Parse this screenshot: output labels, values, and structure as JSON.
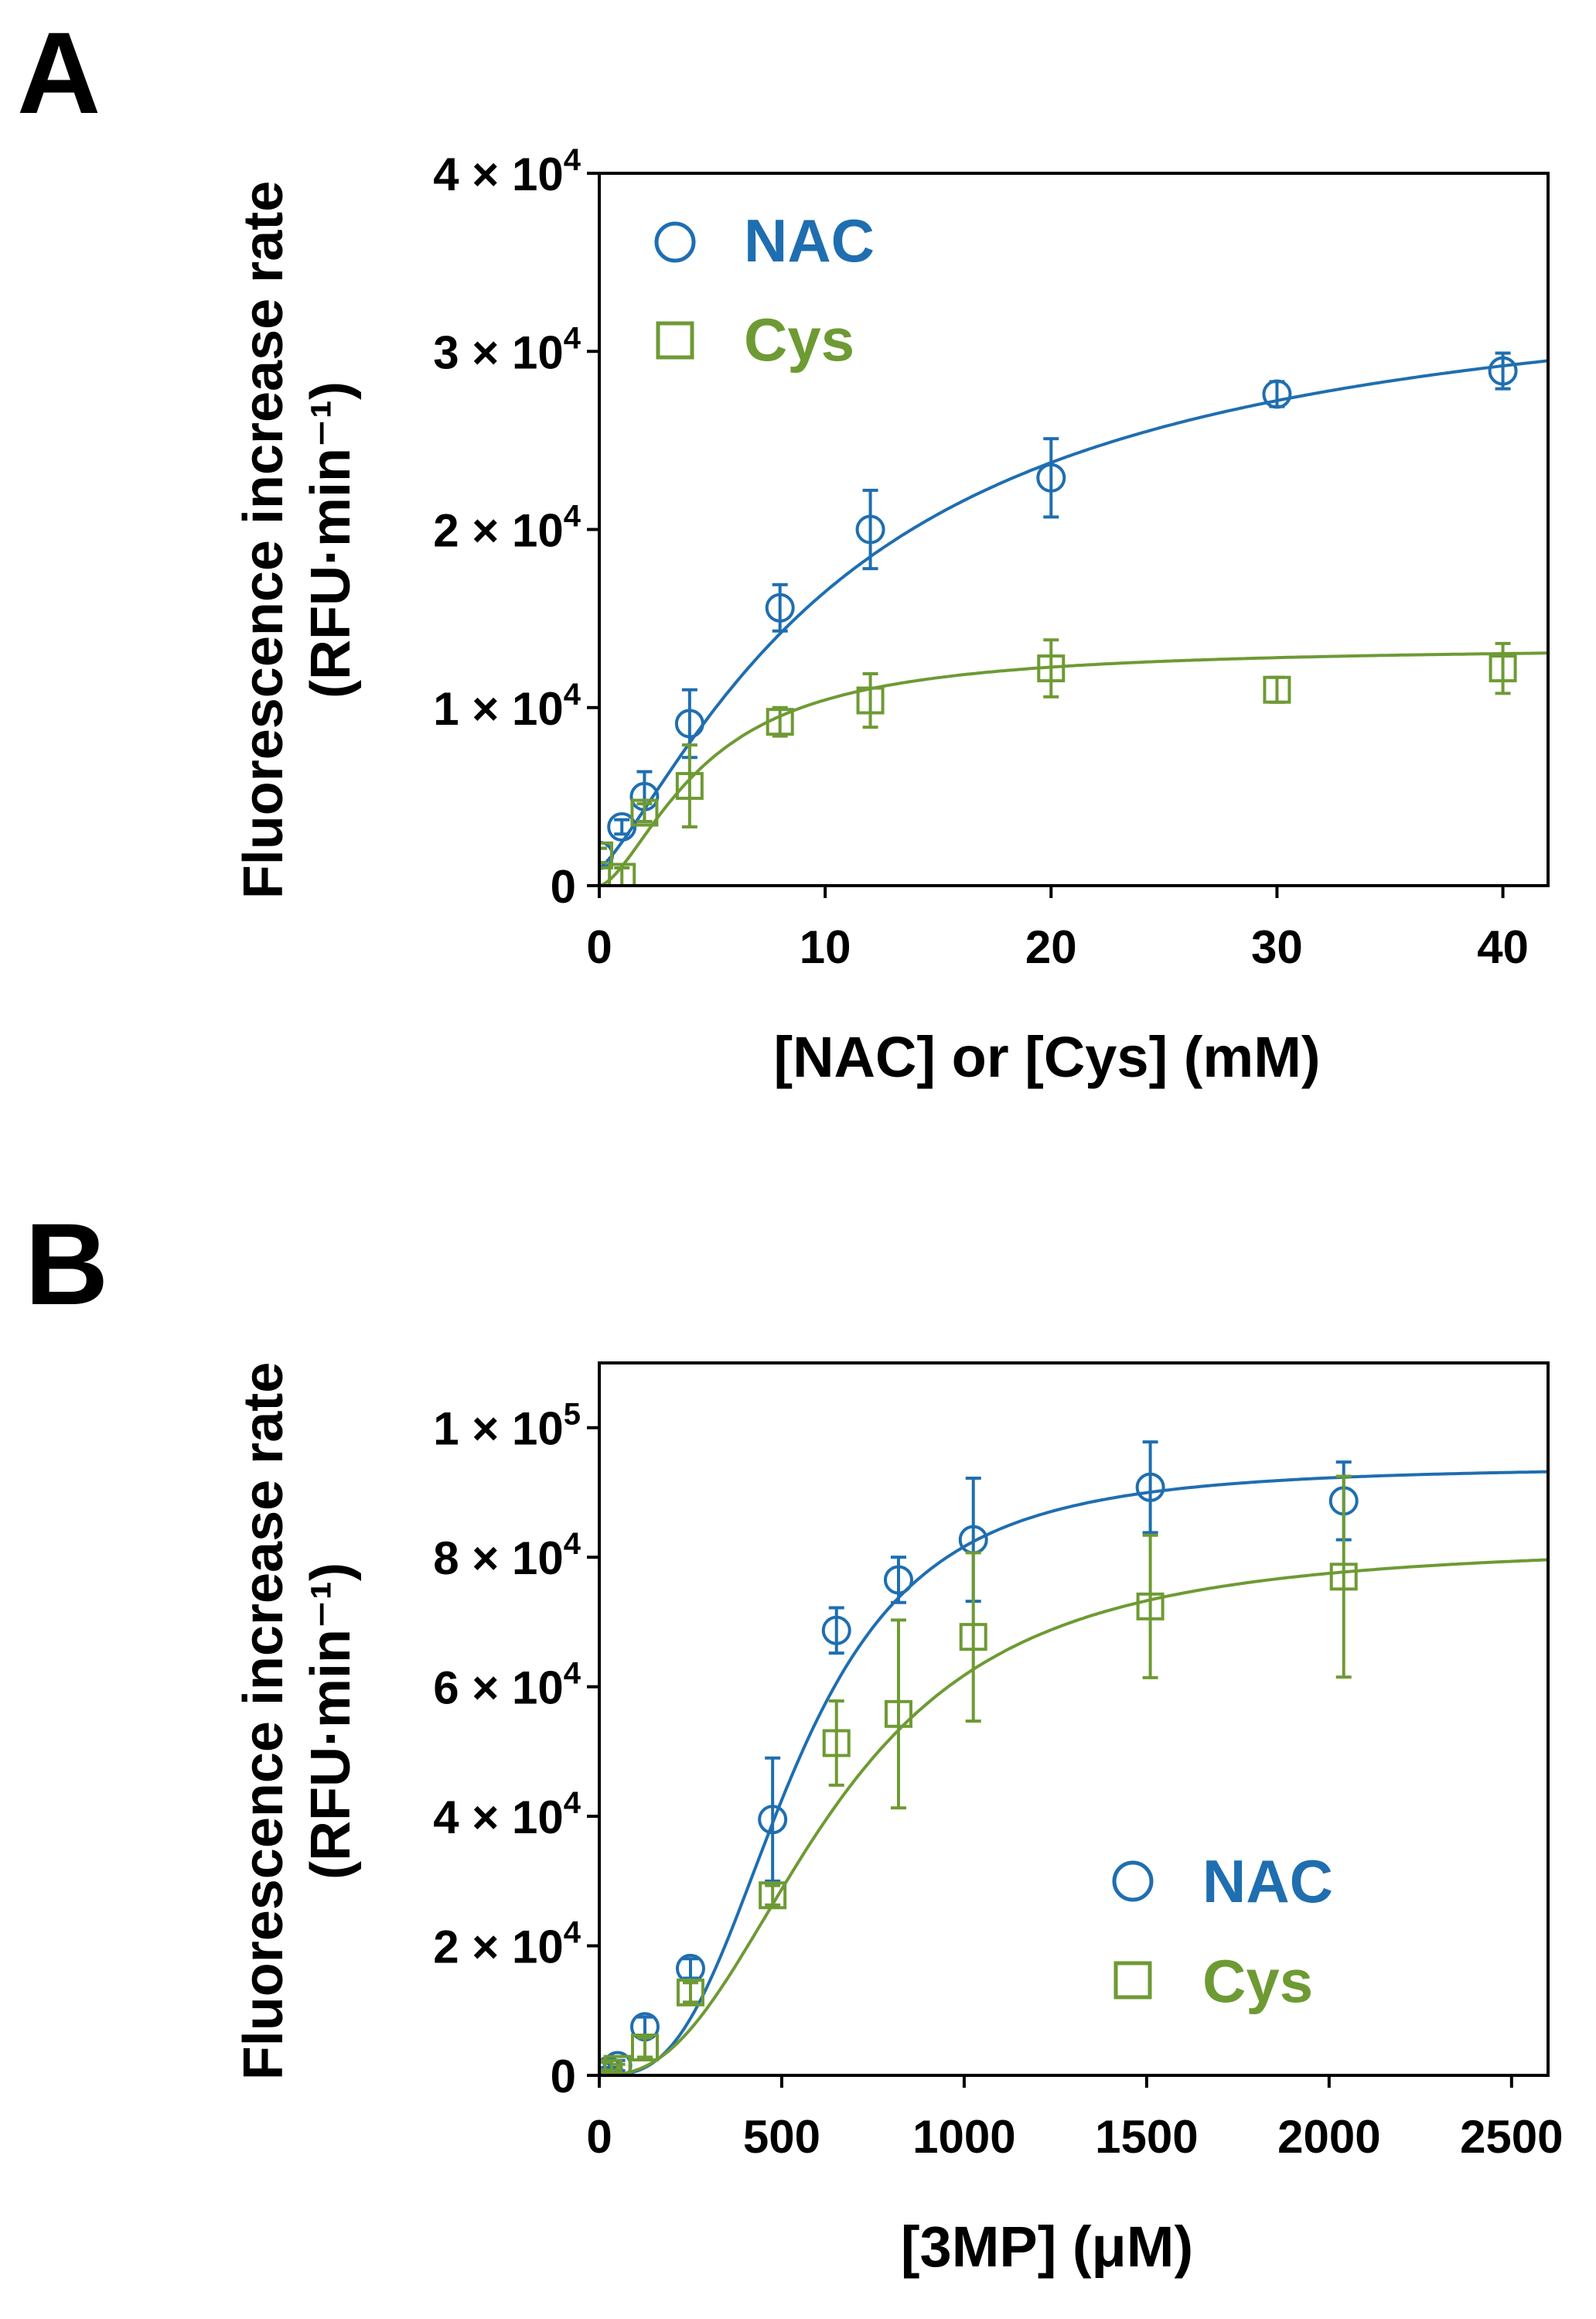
{
  "colors": {
    "nac": "#1f6eb0",
    "cys": "#6e9a34",
    "axis": "#000000"
  },
  "chart_data": [
    {
      "panel": "A",
      "type": "scatter",
      "xlabel": "[NAC] or [Cys] (mM)",
      "ylabel": "Fluorescence increase rate",
      "ylabel_unit": "(RFU·min⁻¹)",
      "xlim": [
        0,
        42
      ],
      "ylim": [
        0,
        40000
      ],
      "x_ticks": [
        0,
        10,
        20,
        30,
        40
      ],
      "x_tick_labels": [
        "0",
        "10",
        "20",
        "30",
        "40"
      ],
      "y_ticks": [
        0,
        10000,
        20000,
        30000,
        40000
      ],
      "y_tick_labels": [
        {
          "mantissa": "0",
          "exp": ""
        },
        {
          "mantissa": "1 × 10",
          "exp": "4"
        },
        {
          "mantissa": "2 × 10",
          "exp": "4"
        },
        {
          "mantissa": "3 × 10",
          "exp": "4"
        },
        {
          "mantissa": "4 × 10",
          "exp": "4"
        }
      ],
      "legend_position": "top-left",
      "series": [
        {
          "name": "NAC",
          "marker": "circle",
          "color": "#1f6eb0",
          "x": [
            0,
            1,
            2,
            4,
            8,
            12,
            20,
            30,
            40
          ],
          "y": [
            1700,
            3300,
            5000,
            9100,
            15600,
            20000,
            22900,
            27600,
            28900
          ],
          "err": [
            400,
            400,
            1400,
            1900,
            1300,
            2200,
            2200,
            700,
            1000
          ],
          "fit": {
            "model": "hill",
            "vmax": 34838,
            "k": 11.4,
            "n": 1.28,
            "y0": 1000
          }
        },
        {
          "name": "Cys",
          "marker": "square",
          "color": "#6e9a34",
          "x": [
            0,
            1,
            2,
            4,
            8,
            12,
            20,
            30,
            40
          ],
          "y": [
            1700,
            500,
            4100,
            5600,
            9200,
            10400,
            12200,
            11000,
            12200
          ],
          "err": [
            400,
            500,
            500,
            2300,
            800,
            1500,
            1600,
            700,
            1400
          ],
          "fit": {
            "model": "hill",
            "vmax": 13440,
            "k": 4.6,
            "n": 1.6,
            "y0": 0
          }
        }
      ]
    },
    {
      "panel": "B",
      "type": "scatter",
      "xlabel": "[3MP] (μM)",
      "ylabel": "Fluorescence increase rate",
      "ylabel_unit": "(RFU·min⁻¹)",
      "xlim": [
        0,
        2600
      ],
      "ylim": [
        0,
        110000
      ],
      "x_ticks": [
        0,
        500,
        1000,
        1500,
        2000,
        2500
      ],
      "x_tick_labels": [
        "0",
        "500",
        "1000",
        "1500",
        "2000",
        "2500"
      ],
      "y_ticks": [
        0,
        20000,
        40000,
        60000,
        80000,
        100000
      ],
      "y_tick_labels": [
        {
          "mantissa": "0",
          "exp": ""
        },
        {
          "mantissa": "2 × 10",
          "exp": "4"
        },
        {
          "mantissa": "4 × 10",
          "exp": "4"
        },
        {
          "mantissa": "6 × 10",
          "exp": "4"
        },
        {
          "mantissa": "8 × 10",
          "exp": "4"
        },
        {
          "mantissa": "1 × 10",
          "exp": "5"
        }
      ],
      "legend_position": "bottom-right",
      "series": [
        {
          "name": "NAC",
          "marker": "circle",
          "color": "#1f6eb0",
          "x": [
            0,
            25,
            50,
            125,
            250,
            475,
            650,
            820,
            1025,
            1510,
            2040
          ],
          "y": [
            300,
            700,
            1500,
            7500,
            16500,
            39500,
            68700,
            76500,
            82700,
            90800,
            88700
          ],
          "err": [
            500,
            500,
            800,
            1500,
            1500,
            9500,
            3500,
            3500,
            9500,
            7000,
            6000
          ],
          "fit": {
            "model": "hill",
            "vmax": 94000,
            "k": 533,
            "n": 3.0,
            "y0": 0
          }
        },
        {
          "name": "Cys",
          "marker": "square",
          "color": "#6e9a34",
          "x": [
            0,
            25,
            50,
            125,
            250,
            475,
            650,
            820,
            1025,
            1510,
            2040
          ],
          "y": [
            100,
            400,
            1000,
            4300,
            12800,
            27800,
            51300,
            55800,
            67700,
            72400,
            77000
          ],
          "err": [
            400,
            400,
            700,
            1500,
            1500,
            1500,
            6500,
            14500,
            13000,
            11000,
            15500
          ],
          "fit": {
            "model": "hill",
            "vmax": 82000,
            "k": 640,
            "n": 2.5,
            "y0": 0
          }
        }
      ]
    }
  ]
}
